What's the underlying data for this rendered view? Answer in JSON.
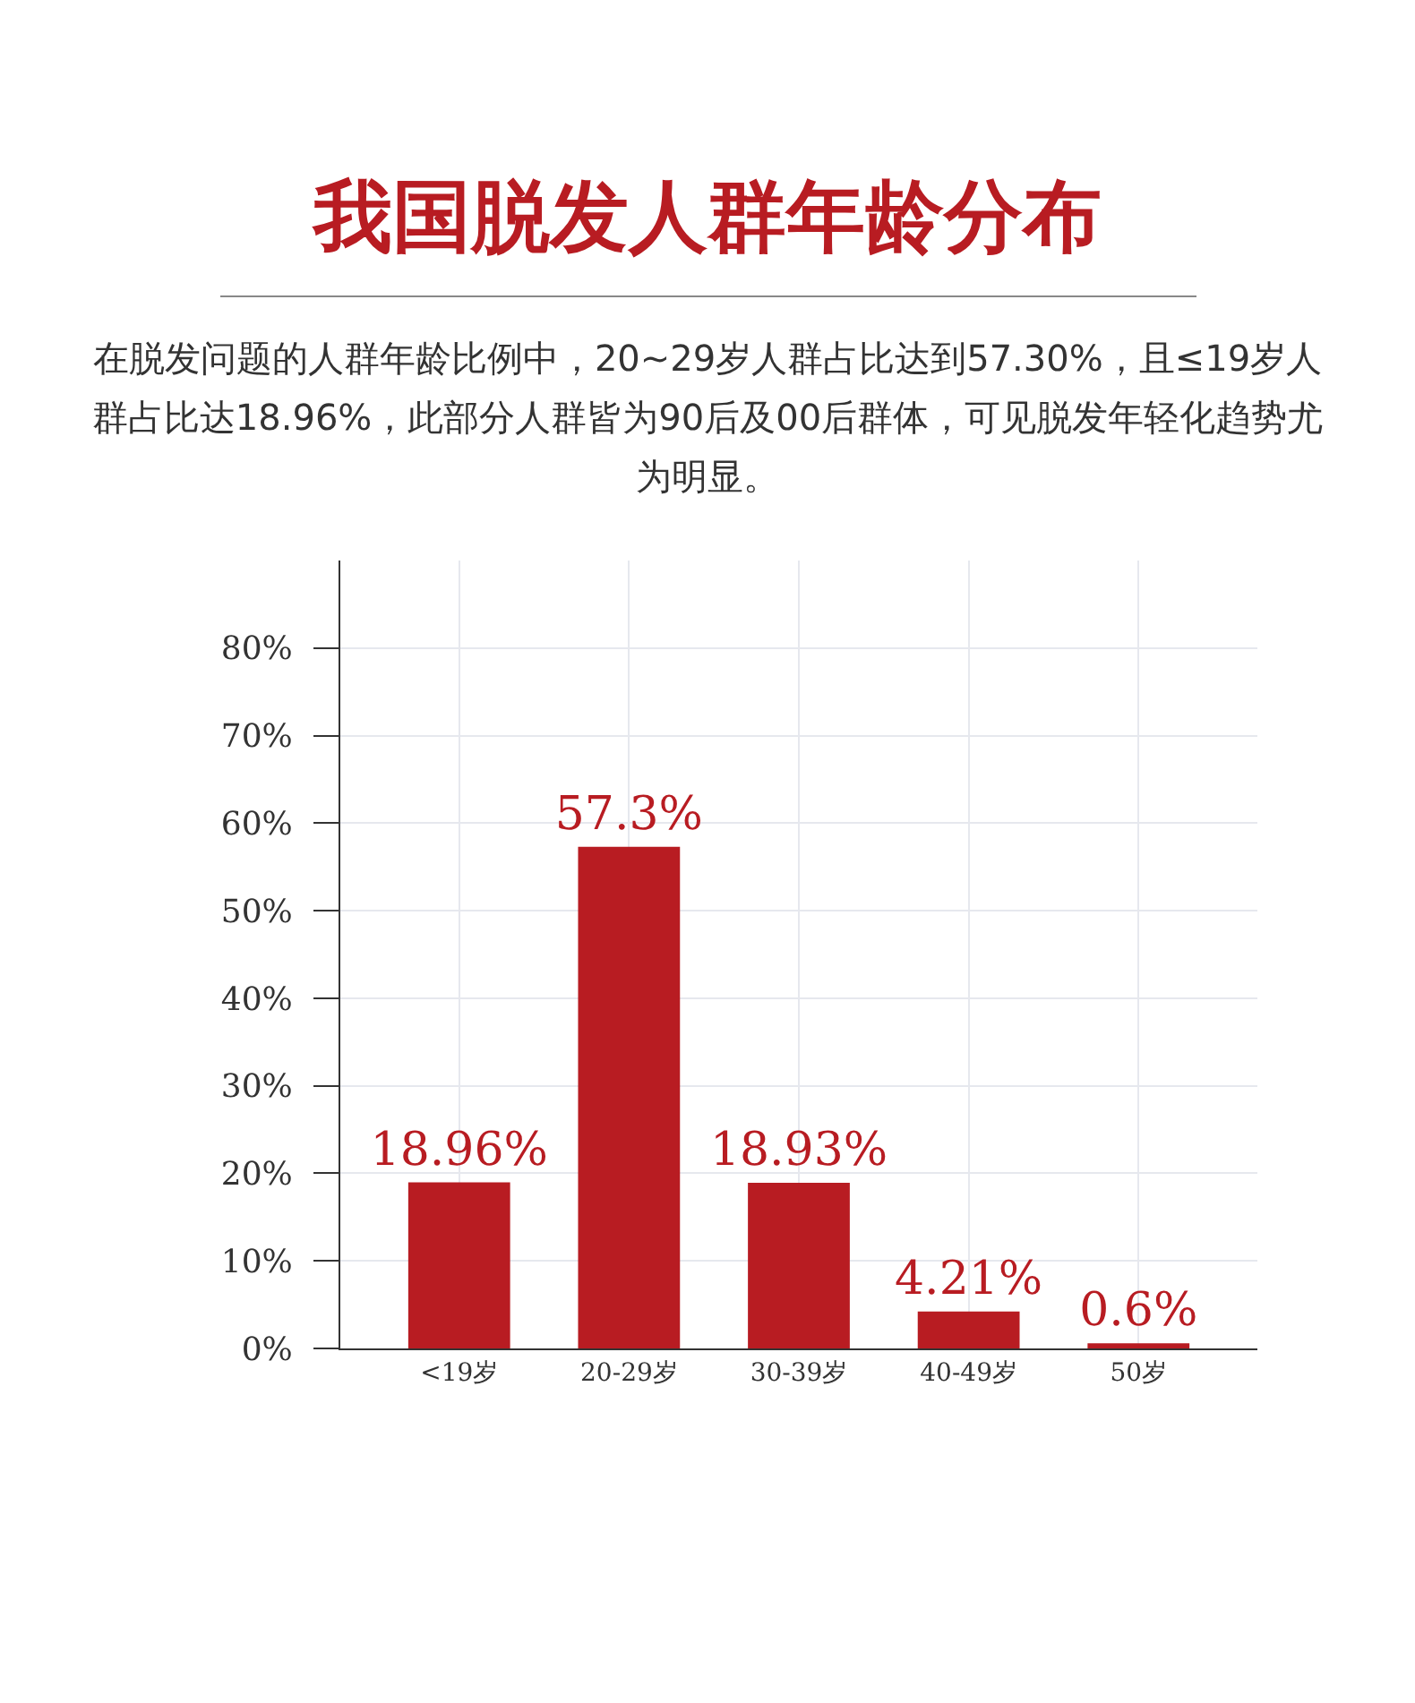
{
  "chart_data": {
    "type": "bar",
    "title": "我国脱发人群年龄分布",
    "subtitle": "在脱发问题的人群年龄比例中，20~29岁人群占比达到57.30%，且≤19岁人群占比达18.96%，此部分人群皆为90后及00后群体，可见脱发年轻化趋势尤为明显。",
    "categories": [
      "<19岁",
      "20-29岁",
      "30-39岁",
      "40-49岁",
      "50岁"
    ],
    "values": [
      18.96,
      57.3,
      18.93,
      4.21,
      0.6
    ],
    "value_labels": [
      "18.96%",
      "57.3%",
      "18.93%",
      "4.21%",
      "0.6%"
    ],
    "color": "#b81c22",
    "ylim": [
      0,
      90
    ],
    "yticks": [
      {
        "value": 0,
        "label": "0%"
      },
      {
        "value": 10,
        "label": "10%"
      },
      {
        "value": 20,
        "label": "20%"
      },
      {
        "value": 30,
        "label": "30%"
      },
      {
        "value": 40,
        "label": "40%"
      },
      {
        "value": 50,
        "label": "50%"
      },
      {
        "value": 60,
        "label": "60%"
      },
      {
        "value": 70,
        "label": "70%"
      },
      {
        "value": 80,
        "label": "80%"
      }
    ],
    "grid": true
  }
}
